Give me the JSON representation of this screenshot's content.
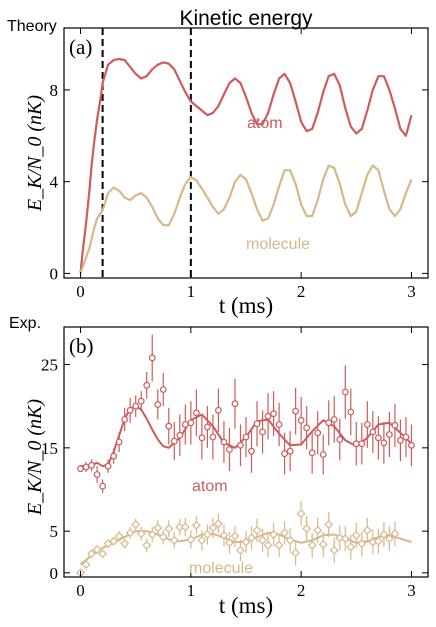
{
  "figure_title": "Kinetic energy",
  "chart_data": [
    {
      "panel": "(a)",
      "corner_label": "Theory",
      "type": "line",
      "xlabel": "t (ms)",
      "ylabel": "E_K/N_0 (nK)",
      "xlim": [
        -0.15,
        3.15
      ],
      "ylim": [
        -0.2,
        10.7
      ],
      "xticks": [
        0,
        1,
        2,
        3
      ],
      "yticks": [
        0,
        4,
        8
      ],
      "grid": false,
      "vlines": [
        0.2,
        1.0
      ],
      "series": [
        {
          "name": "atom",
          "color": "#cd5c5c",
          "x": [
            0,
            0.02,
            0.05,
            0.08,
            0.1,
            0.12,
            0.15,
            0.18,
            0.2,
            0.25,
            0.3,
            0.35,
            0.4,
            0.45,
            0.5,
            0.55,
            0.6,
            0.65,
            0.7,
            0.75,
            0.8,
            0.85,
            0.9,
            0.95,
            1.0,
            1.05,
            1.1,
            1.15,
            1.2,
            1.25,
            1.3,
            1.35,
            1.4,
            1.45,
            1.5,
            1.55,
            1.6,
            1.65,
            1.7,
            1.75,
            1.8,
            1.85,
            1.9,
            1.95,
            2.0,
            2.05,
            2.1,
            2.15,
            2.2,
            2.25,
            2.3,
            2.35,
            2.4,
            2.45,
            2.5,
            2.55,
            2.6,
            2.65,
            2.7,
            2.75,
            2.8,
            2.85,
            2.9,
            2.95,
            3.0
          ],
          "y": [
            0.0,
            1.0,
            2.2,
            3.6,
            4.7,
            5.6,
            6.7,
            7.6,
            8.3,
            9.1,
            9.3,
            9.35,
            9.3,
            9.0,
            8.7,
            8.5,
            8.6,
            8.9,
            9.1,
            9.2,
            9.15,
            8.9,
            8.4,
            7.9,
            7.5,
            7.3,
            7.1,
            6.9,
            7.0,
            7.3,
            7.8,
            8.3,
            8.5,
            8.3,
            7.7,
            7.0,
            6.5,
            6.5,
            7.0,
            7.8,
            8.5,
            8.7,
            8.3,
            7.5,
            6.6,
            6.2,
            6.3,
            7.0,
            7.9,
            8.6,
            8.7,
            8.2,
            7.2,
            6.4,
            6.1,
            6.3,
            7.1,
            8.0,
            8.6,
            8.6,
            8.0,
            7.2,
            6.3,
            6.0,
            6.9
          ]
        },
        {
          "name": "molecule",
          "color": "#d8b78a",
          "x": [
            0,
            0.02,
            0.05,
            0.08,
            0.1,
            0.12,
            0.15,
            0.18,
            0.2,
            0.25,
            0.3,
            0.35,
            0.4,
            0.45,
            0.5,
            0.55,
            0.6,
            0.65,
            0.7,
            0.75,
            0.8,
            0.85,
            0.9,
            0.95,
            1.0,
            1.05,
            1.1,
            1.15,
            1.2,
            1.25,
            1.3,
            1.35,
            1.4,
            1.45,
            1.5,
            1.55,
            1.6,
            1.65,
            1.7,
            1.75,
            1.8,
            1.85,
            1.9,
            1.95,
            2.0,
            2.05,
            2.1,
            2.15,
            2.2,
            2.25,
            2.3,
            2.35,
            2.4,
            2.45,
            2.5,
            2.55,
            2.6,
            2.65,
            2.7,
            2.75,
            2.8,
            2.85,
            2.9,
            2.95,
            3.0
          ],
          "y": [
            0.0,
            0.3,
            0.7,
            1.1,
            1.5,
            1.9,
            2.4,
            2.6,
            2.75,
            3.5,
            3.75,
            3.6,
            3.3,
            3.2,
            3.4,
            3.5,
            3.3,
            2.9,
            2.4,
            2.1,
            2.1,
            2.6,
            3.3,
            3.9,
            4.2,
            4.05,
            3.7,
            3.3,
            2.9,
            2.6,
            2.8,
            3.3,
            4.0,
            4.3,
            4.1,
            3.5,
            2.8,
            2.3,
            2.4,
            3.0,
            3.8,
            4.5,
            4.5,
            3.9,
            3.0,
            2.5,
            2.5,
            3.2,
            4.1,
            4.7,
            4.6,
            3.9,
            3.0,
            2.5,
            2.7,
            3.5,
            4.3,
            4.7,
            4.5,
            3.6,
            2.8,
            2.5,
            2.8,
            3.5,
            4.1
          ]
        }
      ]
    },
    {
      "panel": "(b)",
      "corner_label": "Exp.",
      "type": "scatter",
      "xlabel": "t (ms)",
      "ylabel": "E_K/N_0 (nK)",
      "xlim": [
        -0.15,
        3.15
      ],
      "ylim": [
        -0.5,
        29.5
      ],
      "xticks": [
        0,
        1,
        2,
        3
      ],
      "yticks": [
        0,
        5,
        15,
        25
      ],
      "grid": false,
      "series": [
        {
          "name": "atom",
          "color": "#cd5c5c",
          "marker": "circle",
          "fit_x": [
            0,
            0.1,
            0.15,
            0.2,
            0.25,
            0.3,
            0.35,
            0.4,
            0.45,
            0.5,
            0.55,
            0.6,
            0.65,
            0.7,
            0.75,
            0.8,
            0.9,
            1.0,
            1.1,
            1.2,
            1.3,
            1.4,
            1.5,
            1.6,
            1.7,
            1.8,
            1.9,
            2.0,
            2.1,
            2.2,
            2.3,
            2.4,
            2.5,
            2.6,
            2.7,
            2.8,
            2.9,
            3.0
          ],
          "fit_y": [
            12.8,
            12.9,
            13.2,
            12.8,
            13.0,
            14.5,
            16.5,
            18.5,
            19.7,
            20.0,
            19.6,
            18.5,
            17.2,
            16.0,
            15.2,
            15.0,
            16.2,
            18.3,
            19.0,
            17.6,
            15.6,
            15.0,
            16.3,
            18.2,
            18.4,
            16.7,
            15.3,
            15.4,
            17.0,
            18.3,
            17.6,
            15.9,
            15.2,
            16.2,
            17.8,
            18.0,
            16.8,
            15.5
          ],
          "x": [
            0.0,
            0.05,
            0.1,
            0.15,
            0.2,
            0.25,
            0.3,
            0.35,
            0.4,
            0.45,
            0.5,
            0.55,
            0.6,
            0.65,
            0.7,
            0.75,
            0.8,
            0.85,
            0.9,
            0.95,
            1.0,
            1.05,
            1.1,
            1.15,
            1.2,
            1.25,
            1.3,
            1.35,
            1.4,
            1.45,
            1.5,
            1.55,
            1.6,
            1.65,
            1.7,
            1.75,
            1.8,
            1.85,
            1.9,
            1.95,
            2.0,
            2.05,
            2.1,
            2.15,
            2.2,
            2.25,
            2.3,
            2.35,
            2.4,
            2.45,
            2.5,
            2.55,
            2.6,
            2.65,
            2.7,
            2.75,
            2.8,
            2.85,
            2.9,
            2.95,
            3.0
          ],
          "y": [
            12.5,
            12.7,
            12.9,
            11.8,
            10.4,
            12.8,
            14.0,
            15.7,
            18.4,
            19.5,
            20.0,
            20.6,
            22.5,
            25.8,
            20.2,
            22.0,
            17.6,
            15.8,
            16.5,
            17.8,
            18.0,
            19.2,
            16.2,
            17.5,
            16.3,
            19.5,
            15.7,
            14.8,
            20.3,
            15.3,
            16.3,
            14.6,
            17.9,
            16.9,
            18.8,
            19.1,
            17.8,
            14.3,
            14.6,
            19.4,
            18.3,
            17.4,
            14.4,
            16.8,
            14.2,
            18.0,
            18.4,
            16.0,
            21.7,
            19.3,
            15.5,
            15.5,
            17.8,
            16.9,
            16.2,
            15.6,
            16.6,
            17.7,
            15.9,
            16.3,
            15.3
          ],
          "yerr": [
            0.4,
            0.6,
            0.7,
            1.0,
            0.8,
            0.8,
            0.9,
            1.2,
            1.4,
            1.5,
            1.3,
            1.2,
            1.6,
            2.8,
            1.8,
            2.0,
            2.2,
            2.3,
            2.5,
            2.4,
            2.6,
            2.8,
            2.6,
            2.5,
            2.7,
            2.6,
            2.5,
            2.6,
            3.0,
            2.5,
            2.4,
            2.6,
            2.7,
            2.6,
            2.8,
            2.7,
            2.6,
            2.5,
            2.4,
            2.8,
            2.8,
            2.6,
            2.5,
            2.6,
            2.4,
            2.7,
            2.8,
            2.5,
            3.2,
            2.8,
            2.6,
            2.5,
            2.8,
            2.5,
            2.6,
            2.5,
            2.7,
            2.6,
            2.5,
            2.4,
            2.5
          ]
        },
        {
          "name": "molecule",
          "color": "#d8b78a",
          "marker": "diamond",
          "fit_x": [
            0,
            0.1,
            0.2,
            0.3,
            0.4,
            0.5,
            0.6,
            0.7,
            0.8,
            0.9,
            1.0,
            1.1,
            1.2,
            1.3,
            1.4,
            1.5,
            1.6,
            1.7,
            1.8,
            1.9,
            2.0,
            2.1,
            2.2,
            2.3,
            2.4,
            2.5,
            2.6,
            2.7,
            2.8,
            2.9,
            3.0
          ],
          "fit_y": [
            1.0,
            2.1,
            3.0,
            3.6,
            4.3,
            5.0,
            5.0,
            4.6,
            4.0,
            3.8,
            4.0,
            4.6,
            4.7,
            4.2,
            3.7,
            3.7,
            4.3,
            4.8,
            4.6,
            4.0,
            3.6,
            3.9,
            4.5,
            4.6,
            4.1,
            3.6,
            3.8,
            4.3,
            4.5,
            4.1,
            3.7
          ],
          "x": [
            0.0,
            0.05,
            0.1,
            0.15,
            0.2,
            0.25,
            0.3,
            0.35,
            0.4,
            0.45,
            0.5,
            0.55,
            0.6,
            0.65,
            0.7,
            0.75,
            0.8,
            0.85,
            0.9,
            0.95,
            1.0,
            1.05,
            1.1,
            1.15,
            1.2,
            1.25,
            1.3,
            1.35,
            1.4,
            1.45,
            1.5,
            1.55,
            1.6,
            1.65,
            1.7,
            1.75,
            1.8,
            1.85,
            1.9,
            1.95,
            2.0,
            2.05,
            2.1,
            2.15,
            2.2,
            2.25,
            2.3,
            2.35,
            2.4,
            2.45,
            2.5,
            2.55,
            2.6,
            2.65,
            2.7,
            2.75,
            2.8,
            2.85
          ],
          "y": [
            0.0,
            1.0,
            2.3,
            2.8,
            2.3,
            3.5,
            3.8,
            4.4,
            3.5,
            4.8,
            5.8,
            4.7,
            3.3,
            4.6,
            5.4,
            4.3,
            5.3,
            3.9,
            5.5,
            5.5,
            4.0,
            5.7,
            3.9,
            4.6,
            5.4,
            5.9,
            4.5,
            3.6,
            4.4,
            2.7,
            3.7,
            4.2,
            5.1,
            3.9,
            3.3,
            4.6,
            3.3,
            4.8,
            3.9,
            2.4,
            7.1,
            5.3,
            3.3,
            5.1,
            3.4,
            5.8,
            2.7,
            4.2,
            4.1,
            3.1,
            4.5,
            3.5,
            5.1,
            3.7,
            3.8,
            4.6,
            4.1,
            4.7
          ],
          "yerr": [
            0.3,
            0.3,
            0.4,
            0.4,
            0.4,
            0.5,
            0.5,
            0.6,
            0.6,
            0.7,
            0.7,
            0.8,
            0.8,
            0.9,
            0.9,
            0.9,
            1.0,
            1.0,
            1.0,
            1.1,
            1.1,
            1.1,
            1.2,
            1.2,
            1.2,
            1.2,
            1.3,
            1.3,
            1.3,
            1.3,
            1.3,
            1.4,
            1.4,
            1.4,
            1.4,
            1.4,
            1.4,
            1.4,
            1.5,
            1.5,
            1.5,
            1.5,
            1.5,
            1.5,
            1.5,
            1.5,
            1.5,
            1.5,
            1.5,
            1.5,
            1.5,
            1.5,
            1.5,
            1.5,
            1.5,
            1.5,
            1.5,
            1.5
          ]
        }
      ]
    }
  ]
}
